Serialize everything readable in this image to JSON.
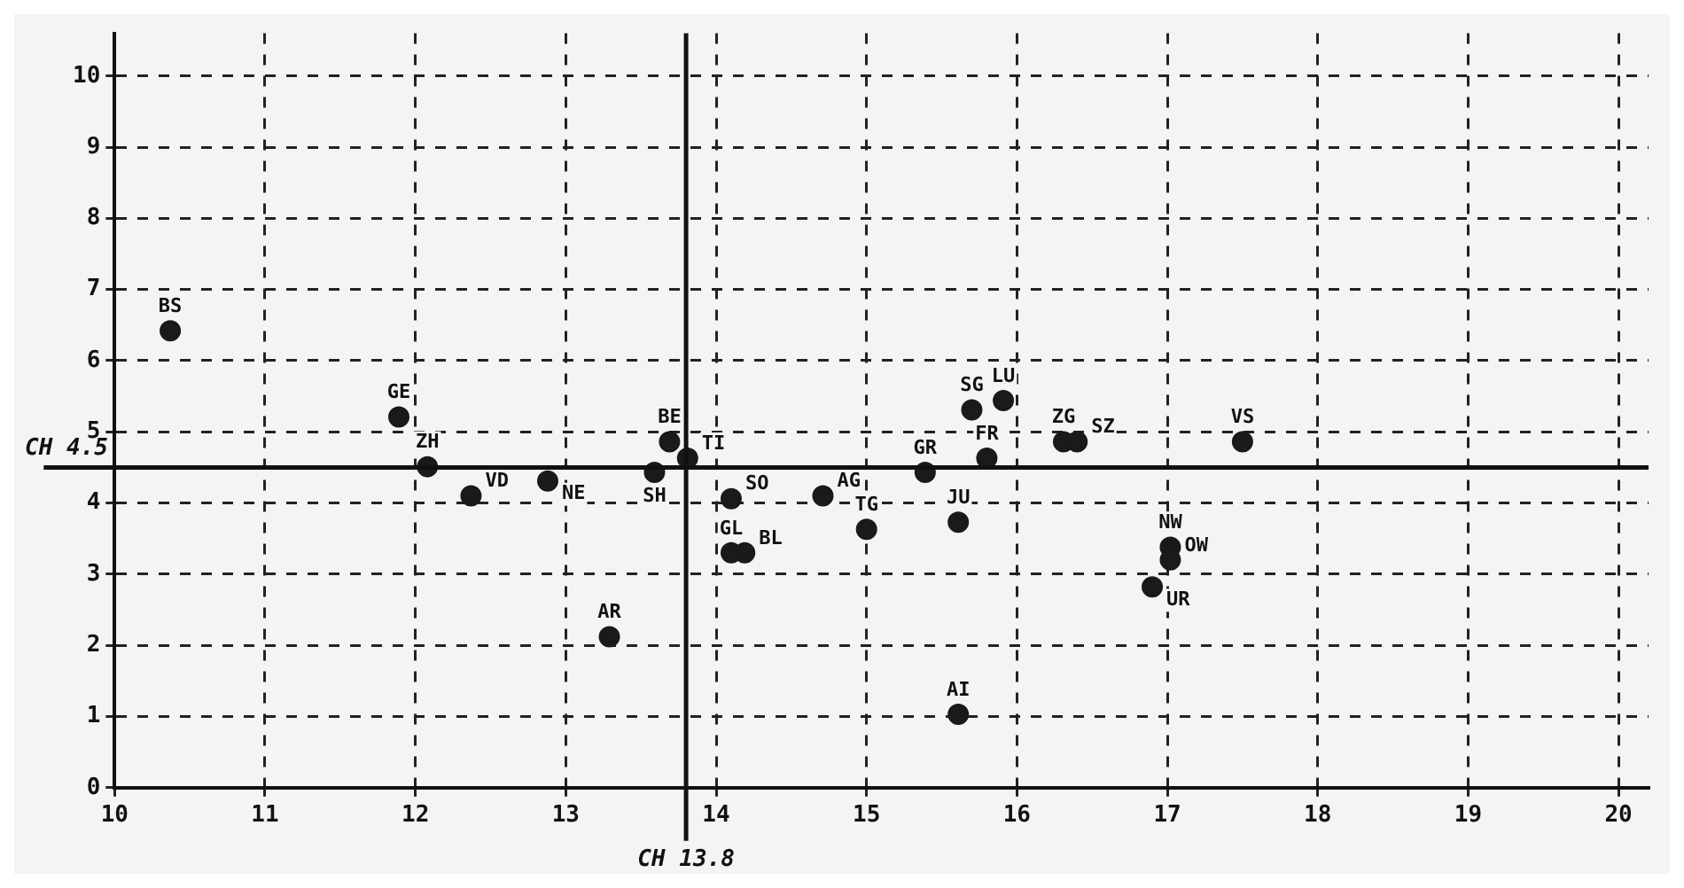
{
  "chart_data": {
    "type": "scatter",
    "marker": "circle",
    "grid": true,
    "x": [
      10.37,
      11.89,
      12.08,
      12.37,
      12.88,
      13.59,
      13.69,
      13.81,
      13.29,
      14.1,
      14.1,
      14.19,
      14.71,
      15.0,
      15.39,
      15.61,
      15.61,
      15.7,
      15.91,
      15.8,
      16.31,
      16.4,
      17.5,
      17.02,
      17.02,
      16.9
    ],
    "series": [
      {
        "color": "#1a1a1a",
        "values": [
          6.42,
          5.21,
          4.51,
          4.1,
          4.31,
          4.43,
          4.86,
          4.63,
          2.12,
          4.06,
          3.3,
          3.3,
          4.1,
          3.63,
          4.43,
          3.73,
          1.03,
          5.31,
          5.44,
          4.63,
          4.86,
          4.86,
          4.86,
          3.38,
          3.2,
          2.82
        ]
      }
    ],
    "xlim": [
      10,
      20.2
    ],
    "ylim": [
      0,
      10.6
    ],
    "xticks": [
      10,
      11,
      12,
      13,
      14,
      15,
      16,
      17,
      18,
      19,
      20
    ],
    "yticks": [
      0,
      1,
      2,
      3,
      4,
      5,
      6,
      7,
      8,
      9,
      10
    ],
    "ref_lines": [
      {
        "axis": "x",
        "value": 13.8,
        "label": "CH 13.8"
      },
      {
        "axis": "y",
        "value": 4.5,
        "label": "CH 4.5"
      }
    ],
    "annotations": [
      {
        "text": "BS",
        "x": 10.37,
        "y": 6.42
      },
      {
        "text": "GE",
        "x": 11.89,
        "y": 5.21
      },
      {
        "text": "ZH",
        "x": 12.08,
        "y": 4.51
      },
      {
        "text": "VD",
        "x": 12.37,
        "y": 4.1
      },
      {
        "text": "NE",
        "x": 12.88,
        "y": 4.31
      },
      {
        "text": "SH",
        "x": 13.59,
        "y": 4.43
      },
      {
        "text": "BE",
        "x": 13.69,
        "y": 4.86
      },
      {
        "text": "TI",
        "x": 13.81,
        "y": 4.63
      },
      {
        "text": "AR",
        "x": 13.29,
        "y": 2.12
      },
      {
        "text": "SO",
        "x": 14.1,
        "y": 4.06
      },
      {
        "text": "GL",
        "x": 14.1,
        "y": 3.3
      },
      {
        "text": "BL",
        "x": 14.19,
        "y": 3.3
      },
      {
        "text": "AG",
        "x": 14.71,
        "y": 4.1
      },
      {
        "text": "TG",
        "x": 15.0,
        "y": 3.63
      },
      {
        "text": "GR",
        "x": 15.39,
        "y": 4.43
      },
      {
        "text": "JU",
        "x": 15.61,
        "y": 3.73
      },
      {
        "text": "AI",
        "x": 15.61,
        "y": 1.03
      },
      {
        "text": "SG",
        "x": 15.7,
        "y": 5.31
      },
      {
        "text": "LU",
        "x": 15.91,
        "y": 5.44
      },
      {
        "text": "FR",
        "x": 15.8,
        "y": 4.63
      },
      {
        "text": "ZG",
        "x": 16.31,
        "y": 4.86
      },
      {
        "text": "SZ",
        "x": 16.4,
        "y": 4.86
      },
      {
        "text": "VS",
        "x": 17.5,
        "y": 4.86
      },
      {
        "text": "NW",
        "x": 17.02,
        "y": 3.38
      },
      {
        "text": "OW",
        "x": 17.02,
        "y": 3.2
      },
      {
        "text": "UR",
        "x": 16.9,
        "y": 2.82
      }
    ]
  }
}
